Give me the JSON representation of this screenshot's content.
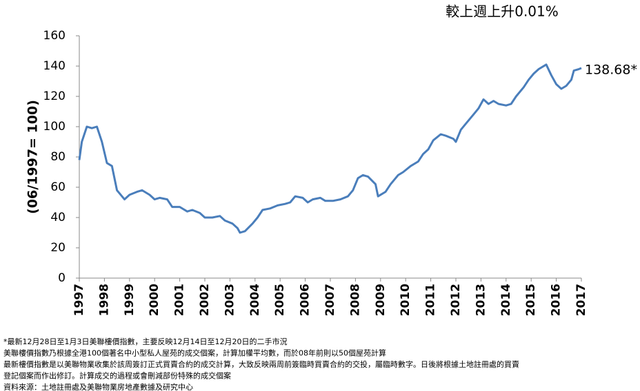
{
  "chart_data": {
    "type": "line",
    "title": "較上週上升0.01%",
    "y_label": "(06/1997= 100)",
    "x": [
      1997.0,
      1997.1,
      1997.3,
      1997.5,
      1997.7,
      1997.9,
      1998.1,
      1998.3,
      1998.5,
      1998.8,
      1999.0,
      1999.3,
      1999.5,
      1999.8,
      2000.0,
      2000.2,
      2000.5,
      2000.7,
      2001.0,
      2001.3,
      2001.5,
      2001.8,
      2002.0,
      2002.3,
      2002.6,
      2002.8,
      2003.1,
      2003.3,
      2003.4,
      2003.6,
      2003.9,
      2004.1,
      2004.3,
      2004.6,
      2004.9,
      2005.2,
      2005.4,
      2005.6,
      2005.9,
      2006.1,
      2006.3,
      2006.6,
      2006.8,
      2007.1,
      2007.4,
      2007.7,
      2007.9,
      2008.1,
      2008.3,
      2008.5,
      2008.8,
      2008.9,
      2009.2,
      2009.4,
      2009.7,
      2009.9,
      2010.2,
      2010.5,
      2010.7,
      2010.9,
      2011.1,
      2011.4,
      2011.6,
      2011.9,
      2012.0,
      2012.2,
      2012.4,
      2012.7,
      2012.9,
      2013.1,
      2013.3,
      2013.5,
      2013.7,
      2014.0,
      2014.2,
      2014.4,
      2014.7,
      2014.9,
      2015.1,
      2015.3,
      2015.6,
      2015.8,
      2016.0,
      2016.2,
      2016.4,
      2016.6,
      2016.7,
      2016.9,
      2017.0
    ],
    "series": [
      {
        "color": "#4a7ebb",
        "values": [
          78,
          90,
          100,
          99,
          100,
          90,
          76,
          74,
          58,
          52,
          55,
          57,
          58,
          55,
          52,
          53,
          52,
          47,
          47,
          44,
          45,
          43,
          40,
          40,
          41,
          38,
          36,
          33,
          30,
          31,
          36,
          40,
          45,
          46,
          48,
          49,
          50,
          54,
          53,
          50,
          52,
          53,
          51,
          51,
          52,
          54,
          58,
          66,
          68,
          67,
          62,
          54,
          57,
          62,
          68,
          70,
          74,
          77,
          82,
          85,
          91,
          95,
          94,
          92,
          90,
          98,
          102,
          108,
          112,
          118,
          115,
          117,
          115,
          114,
          115,
          120,
          126,
          131,
          135,
          138,
          141,
          134,
          128,
          125,
          127,
          131,
          137,
          138,
          138.68
        ]
      }
    ],
    "last_value_label": "138.68*",
    "xlim": [
      1997,
      2017
    ],
    "xticks": [
      1997,
      1998,
      1999,
      2000,
      2001,
      2002,
      2003,
      2004,
      2005,
      2006,
      2007,
      2008,
      2009,
      2010,
      2011,
      2012,
      2013,
      2014,
      2015,
      2016,
      2017
    ],
    "ylim": [
      0,
      160
    ],
    "yticks": [
      0,
      20,
      40,
      60,
      80,
      100,
      120,
      140,
      160
    ],
    "footnotes": [
      "*最新12月28日至1月3日美聯樓價指數，主要反映12月14日至12月20日的二手市況",
      "美聯樓價指數乃根據全港100個著名中小型私人屋苑的成交個案，計算加權平均數，而於08年前則以50個屋苑計算",
      "最新樓價指數是以美聯物業收集於該周簽訂正式買賣合約的成交計算，大致反映兩周前簽臨時買賣合約的交投，屬臨時數字。日後將根據土地註冊處的買賣",
      "登記個案而作出修訂。計算成交的過程或會刪減部份特殊的成交個案",
      "資料來源：土地註冊處及美聯物業房地產數據及研究中心"
    ]
  }
}
